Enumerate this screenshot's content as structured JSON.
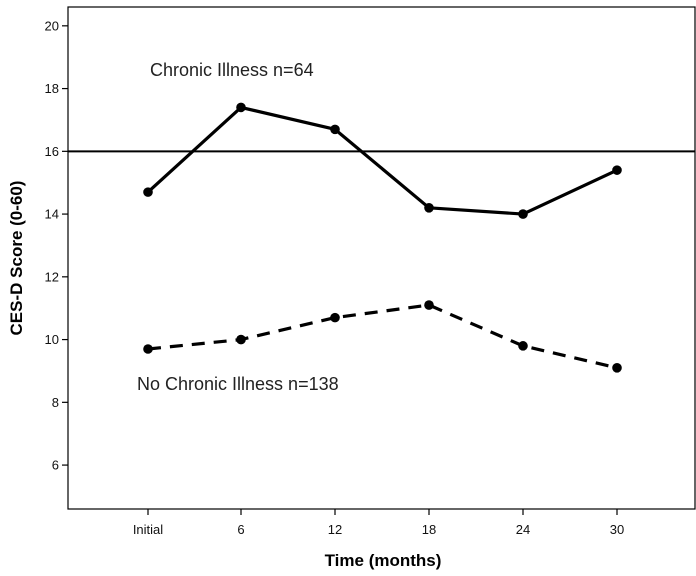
{
  "chart_data": {
    "type": "line",
    "categories": [
      "Initial",
      "6",
      "12",
      "18",
      "24",
      "30"
    ],
    "xlabel": "Time (months)",
    "ylabel": "CES-D Score (0-60)",
    "ylim": [
      4.6,
      20.6
    ],
    "yticks": [
      6,
      8,
      10,
      12,
      14,
      16,
      18,
      20
    ],
    "reference_line": 16,
    "grid": false,
    "series": [
      {
        "values": [
          14.7,
          17.4,
          16.7,
          14.2,
          14.0,
          15.4
        ],
        "line_style": "solid",
        "color": "#000000"
      },
      {
        "values": [
          9.7,
          10.0,
          10.7,
          11.1,
          9.8,
          9.1
        ],
        "line_style": "dashed",
        "color": "#000000"
      }
    ],
    "annotations": [
      {
        "text": "Chronic Illness n=64",
        "series_index": 0
      },
      {
        "text": "No Chronic Illness n=138",
        "series_index": 1
      }
    ]
  }
}
